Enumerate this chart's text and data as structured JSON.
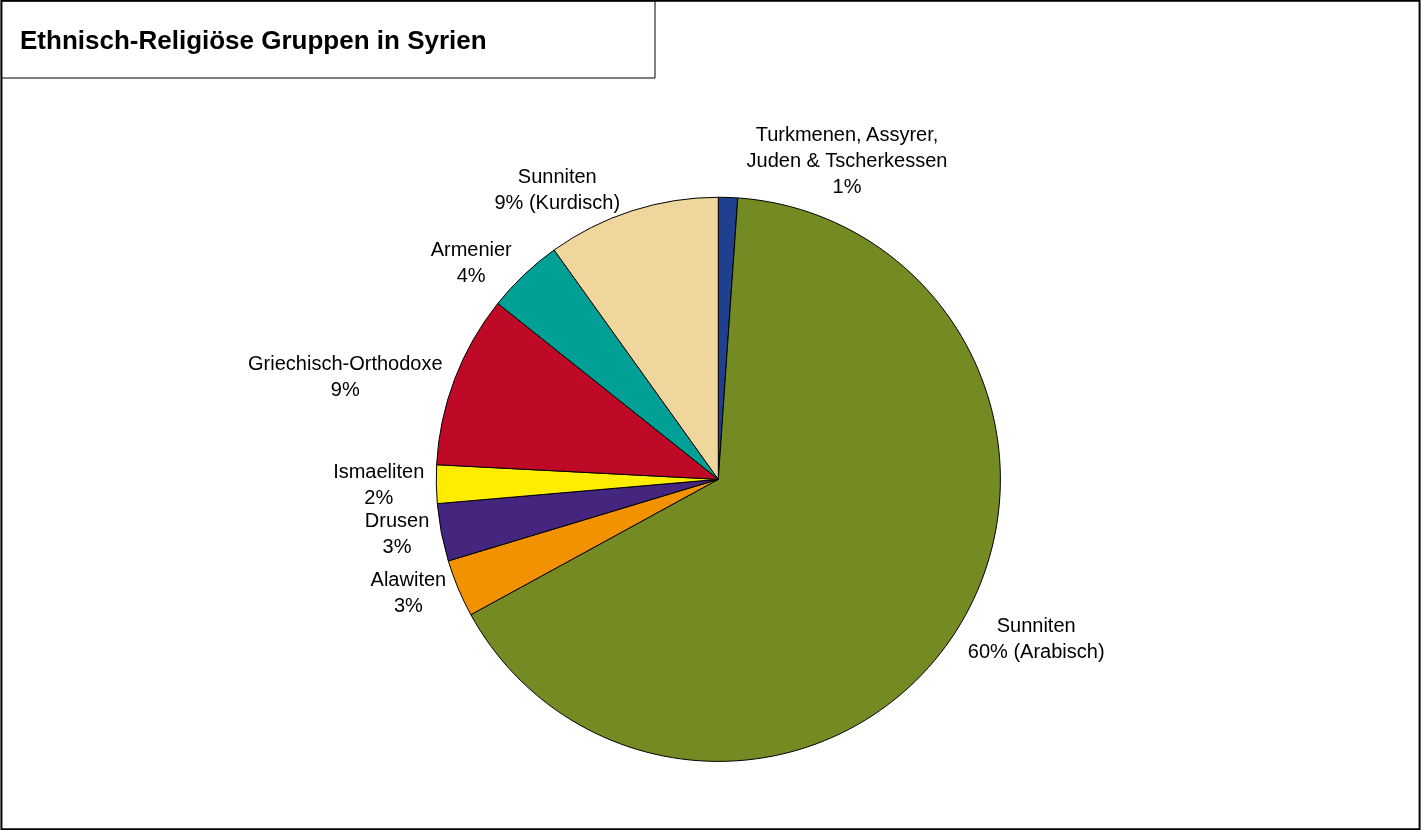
{
  "chart_data": {
    "type": "pie",
    "title": "Ethnisch-Religiöse Gruppen in Syrien",
    "categories": [
      "Turkmenen, Assyrer,\nJuden & Tscherkessen",
      "Sunniten",
      "Alawiten",
      "Drusen",
      "Ismaeliten",
      "Griechisch-Orthodoxe",
      "Armenier",
      "Sunniten"
    ],
    "values": [
      1,
      60,
      3,
      3,
      2,
      9,
      4,
      9
    ],
    "value_labels": [
      "1%",
      "60% (Arabisch)",
      "3%",
      "3%",
      "2%",
      "9%",
      "4%",
      "9% (Kurdisch)"
    ],
    "colors": [
      "#1f3f8f",
      "#748b24",
      "#f39200",
      "#44267e",
      "#ffed00",
      "#be0a26",
      "#00a096",
      "#eed69c"
    ],
    "legend": false
  }
}
